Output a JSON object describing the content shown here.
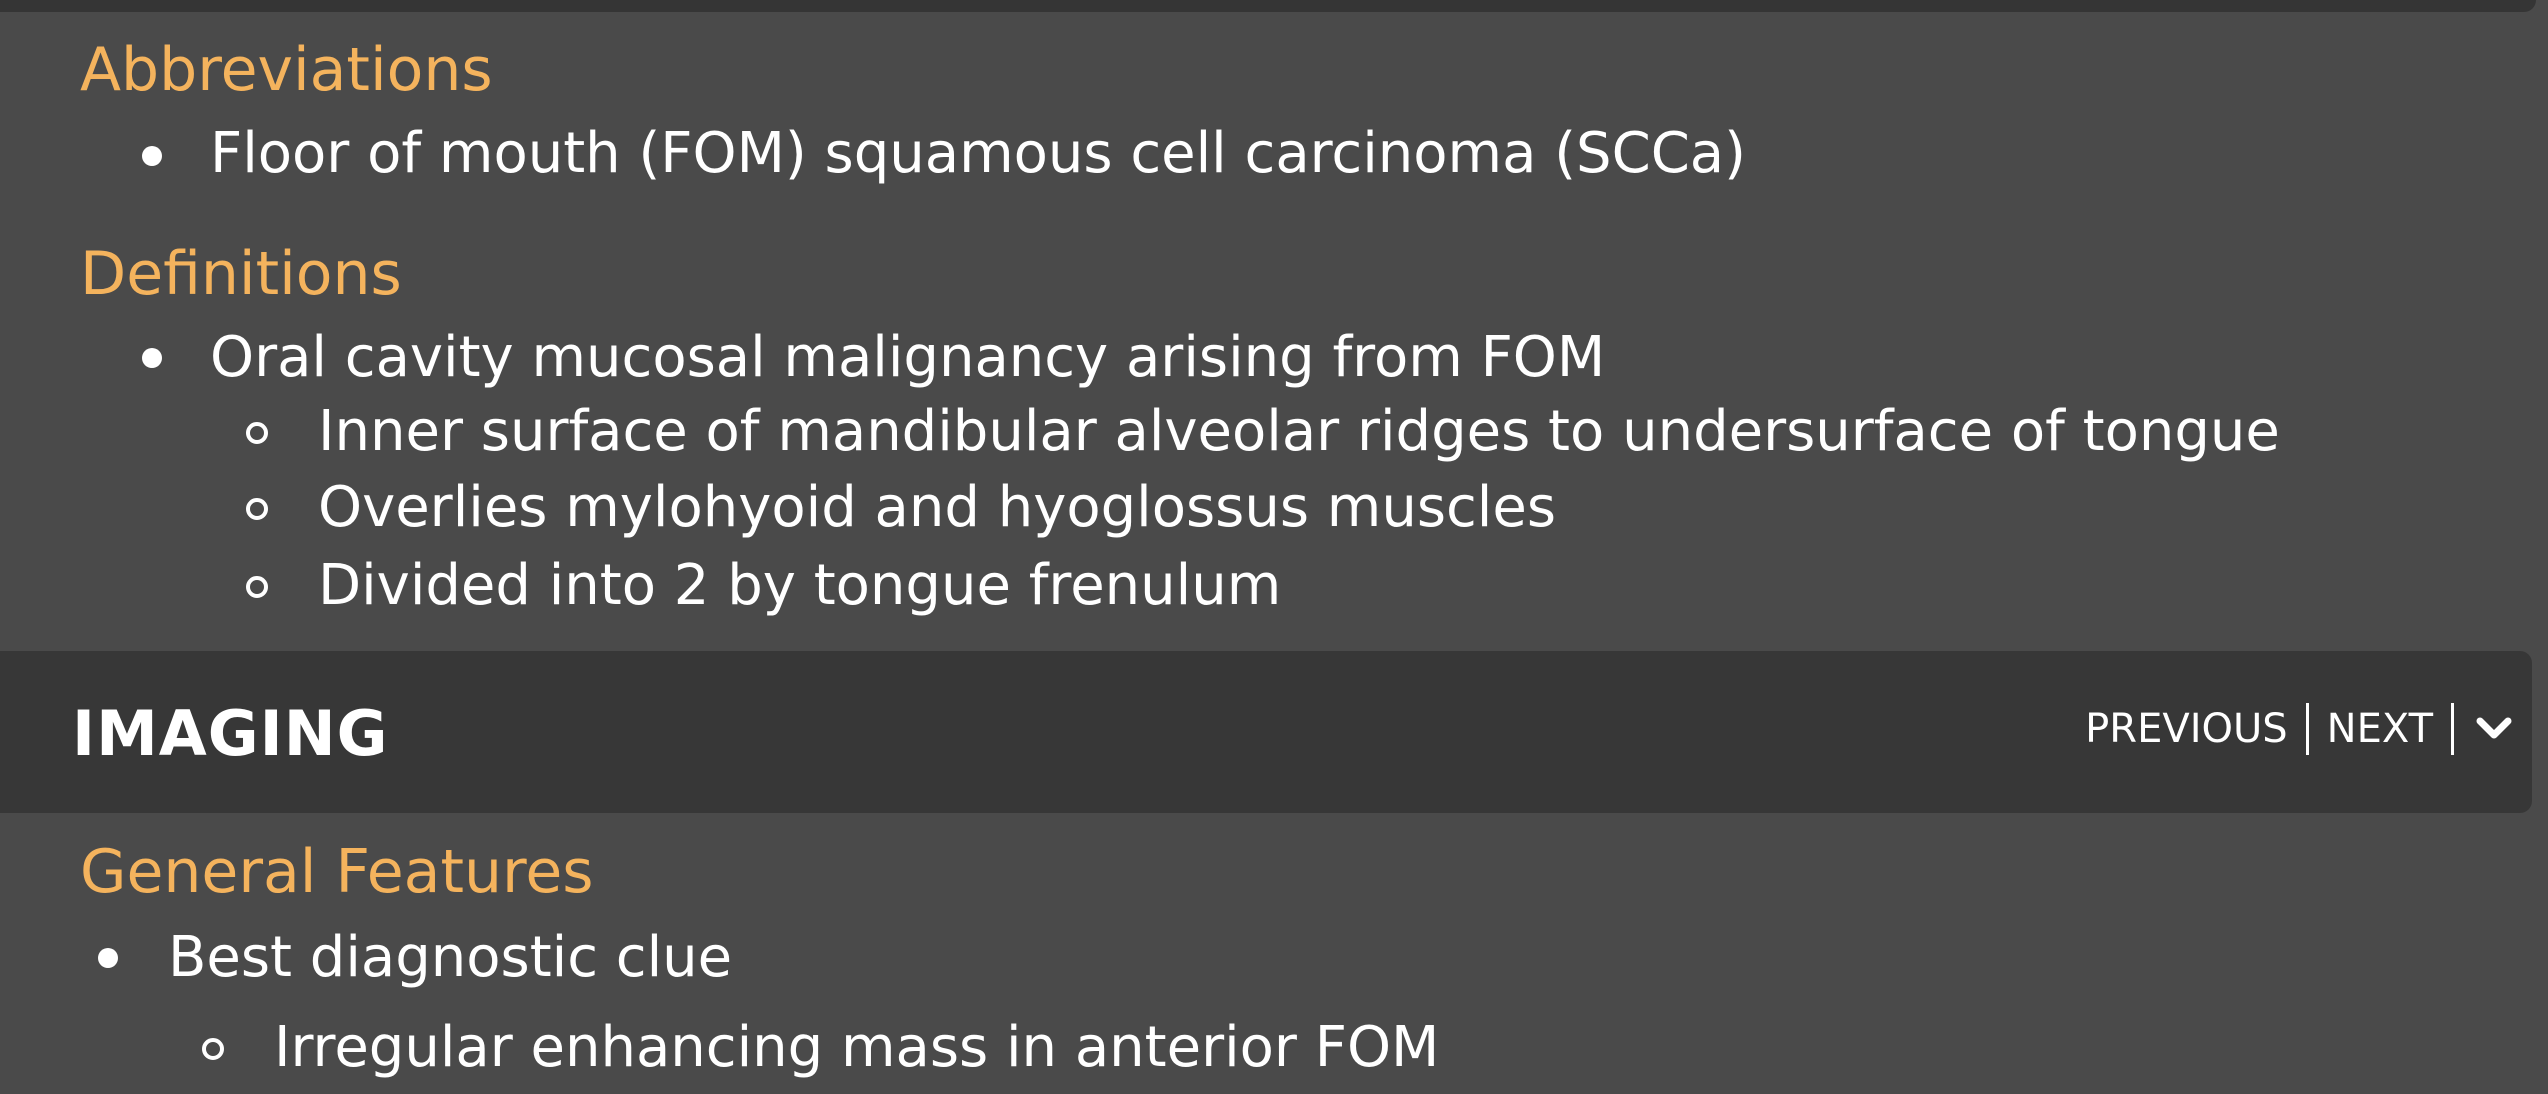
{
  "sections": {
    "abbreviations": {
      "heading": "Abbreviations",
      "items": [
        "Floor of mouth (FOM) squamous cell carcinoma (SCCa)"
      ]
    },
    "definitions": {
      "heading": "Definitions",
      "items": [
        "Oral cavity mucosal malignancy arising from FOM"
      ],
      "subitems": [
        "Inner surface of mandibular alveolar ridges to undersurface of tongue",
        "Overlies mylohyoid and hyoglossus muscles",
        "Divided into 2 by tongue frenulum"
      ]
    },
    "general_features": {
      "heading": "General Features",
      "items": [
        "Best diagnostic clue"
      ],
      "subitems": [
        "Irregular enhancing mass in anterior FOM"
      ]
    }
  },
  "imaging_bar": {
    "title": "IMAGING",
    "previous_label": "PREVIOUS",
    "next_label": "NEXT",
    "toggle_icon": "chevron-down-icon"
  },
  "colors": {
    "heading": "#f4b35d",
    "background": "#4a4a4a",
    "bar": "#373737",
    "text": "#ffffff"
  }
}
